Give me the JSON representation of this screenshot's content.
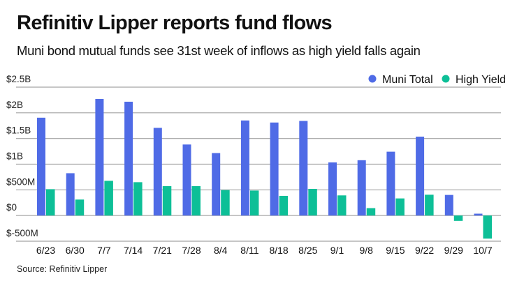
{
  "header": {
    "title": "Refinitiv Lipper reports fund flows",
    "subtitle": "Muni bond mutual funds see 31st week of inflows as high yield falls again"
  },
  "footer": {
    "source": "Source: Refinitiv Lipper"
  },
  "colors": {
    "muni": "#4f6be6",
    "high_yield": "#0dbf97",
    "grid": "#a3a3a3"
  },
  "chart_data": {
    "type": "bar",
    "title": "Refinitiv Lipper reports fund flows",
    "subtitle": "Muni bond mutual funds see 31st week of inflows as high yield falls again",
    "xlabel": "",
    "ylabel": "",
    "units": "millions USD",
    "ylim": [
      -500,
      2500
    ],
    "grid": true,
    "legend_position": "top-right",
    "yticks": [
      {
        "value": 2500,
        "label": "$2.5B"
      },
      {
        "value": 2000,
        "label": "$2B"
      },
      {
        "value": 1500,
        "label": "$1.5B"
      },
      {
        "value": 1000,
        "label": "$1B"
      },
      {
        "value": 500,
        "label": "$500M"
      },
      {
        "value": 0,
        "label": "$0"
      },
      {
        "value": -500,
        "label": "$-500M"
      }
    ],
    "categories": [
      "6/23",
      "6/30",
      "7/7",
      "7/14",
      "7/21",
      "7/28",
      "8/4",
      "8/11",
      "8/18",
      "8/25",
      "9/1",
      "9/8",
      "9/15",
      "9/22",
      "9/29",
      "10/7"
    ],
    "series": [
      {
        "name": "Muni Total",
        "color": "#4f6be6",
        "values": [
          1905,
          824,
          2270,
          2216,
          1707,
          1383,
          1216,
          1851,
          1811,
          1842,
          1034,
          1077,
          1243,
          1536,
          401,
          36
        ]
      },
      {
        "name": "High Yield",
        "color": "#0dbf97",
        "values": [
          513,
          311,
          676,
          649,
          572,
          572,
          496,
          486,
          383,
          518,
          392,
          144,
          333,
          405,
          -104,
          -450
        ]
      }
    ]
  }
}
